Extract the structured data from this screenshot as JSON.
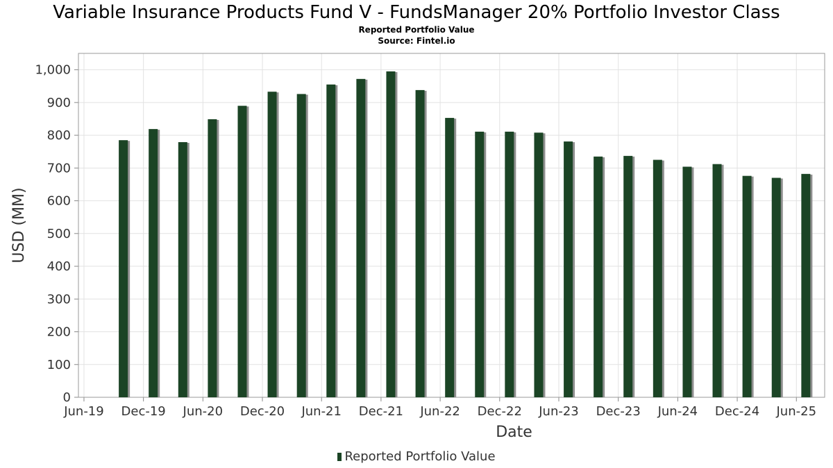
{
  "chart_data": {
    "type": "bar",
    "title": "Variable Insurance Products Fund V - FundsManager 20% Portfolio Investor Class",
    "subtitle": "Reported Portfolio Value",
    "source": "Source: Fintel.io",
    "xlabel": "Date",
    "ylabel": "USD (MM)",
    "ylim": [
      0,
      1050
    ],
    "yticks": [
      0,
      100,
      200,
      300,
      400,
      500,
      600,
      700,
      800,
      900,
      1000
    ],
    "ytick_labels": [
      "0",
      "100",
      "200",
      "300",
      "400",
      "500",
      "600",
      "700",
      "800",
      "900",
      "1,000"
    ],
    "x_range": [
      "2019-05-15",
      "2025-08-27"
    ],
    "xticks": [
      {
        "date": "2019-06-01",
        "label": "Jun-19"
      },
      {
        "date": "2019-12-01",
        "label": "Dec-19"
      },
      {
        "date": "2020-06-01",
        "label": "Jun-20"
      },
      {
        "date": "2020-12-01",
        "label": "Dec-20"
      },
      {
        "date": "2021-06-01",
        "label": "Jun-21"
      },
      {
        "date": "2021-12-01",
        "label": "Dec-21"
      },
      {
        "date": "2022-06-01",
        "label": "Jun-22"
      },
      {
        "date": "2022-12-01",
        "label": "Dec-22"
      },
      {
        "date": "2023-06-01",
        "label": "Jun-23"
      },
      {
        "date": "2023-12-01",
        "label": "Dec-23"
      },
      {
        "date": "2024-06-01",
        "label": "Jun-24"
      },
      {
        "date": "2024-12-01",
        "label": "Dec-24"
      },
      {
        "date": "2025-06-01",
        "label": "Jun-25"
      }
    ],
    "grid": true,
    "legend_position": "bottom-center",
    "series": [
      {
        "name": "Reported Portfolio Value",
        "color": "#1b4425",
        "points": [
          {
            "date": "2019-09-30",
            "value": 785
          },
          {
            "date": "2019-12-31",
            "value": 819
          },
          {
            "date": "2020-03-31",
            "value": 779
          },
          {
            "date": "2020-06-30",
            "value": 849
          },
          {
            "date": "2020-09-30",
            "value": 890
          },
          {
            "date": "2020-12-31",
            "value": 933
          },
          {
            "date": "2021-03-31",
            "value": 926
          },
          {
            "date": "2021-06-30",
            "value": 955
          },
          {
            "date": "2021-09-30",
            "value": 972
          },
          {
            "date": "2021-12-31",
            "value": 995
          },
          {
            "date": "2022-03-31",
            "value": 938
          },
          {
            "date": "2022-06-30",
            "value": 853
          },
          {
            "date": "2022-09-30",
            "value": 811
          },
          {
            "date": "2022-12-31",
            "value": 811
          },
          {
            "date": "2023-03-31",
            "value": 808
          },
          {
            "date": "2023-06-30",
            "value": 781
          },
          {
            "date": "2023-09-30",
            "value": 735
          },
          {
            "date": "2023-12-31",
            "value": 737
          },
          {
            "date": "2024-03-31",
            "value": 725
          },
          {
            "date": "2024-06-30",
            "value": 704
          },
          {
            "date": "2024-09-30",
            "value": 712
          },
          {
            "date": "2024-12-31",
            "value": 676
          },
          {
            "date": "2025-03-31",
            "value": 670
          },
          {
            "date": "2025-06-30",
            "value": 682
          }
        ]
      }
    ]
  }
}
